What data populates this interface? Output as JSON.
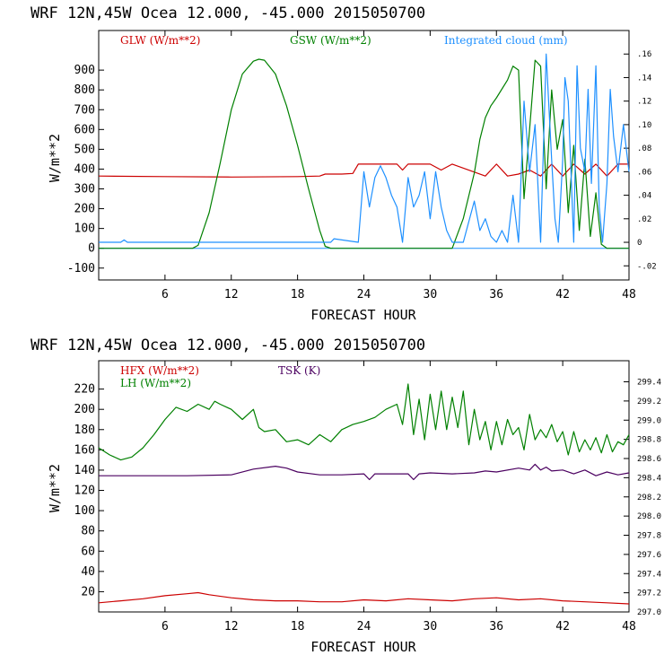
{
  "chart_data": [
    {
      "type": "line",
      "title": "WRF   12N,45W Ocea  12.000, -45.000  2015050700",
      "xlabel": "FORECAST HOUR",
      "ylabel": "W/m**2",
      "xlim": [
        0,
        48
      ],
      "ylim": [
        -160,
        1100
      ],
      "y2lim": [
        -0.032,
        0.18
      ],
      "x_ticks": [
        "6",
        "12",
        "18",
        "24",
        "30",
        "36",
        "42",
        "48"
      ],
      "y_ticks": [
        "-100",
        "0",
        "100",
        "200",
        "300",
        "400",
        "500",
        "600",
        "700",
        "800",
        "900"
      ],
      "y2_ticks": [
        "-.02",
        "0",
        ".02",
        ".04",
        ".06",
        ".08",
        ".10",
        ".12",
        ".14",
        ".16"
      ],
      "legend": [
        {
          "label": "GLW (W/m**2)",
          "color": "#cc0000"
        },
        {
          "label": "GSW (W/m**2)",
          "color": "#008000"
        },
        {
          "label": "Integrated cloud (mm)",
          "color": "#1e90ff"
        }
      ],
      "series": [
        {
          "name": "GLW (W/m**2)",
          "color": "#cc0000",
          "axis": "left",
          "x": [
            0,
            6,
            12,
            18,
            20,
            20.5,
            22,
            23,
            23.5,
            27,
            27.5,
            28,
            30,
            31,
            32,
            35,
            35.5,
            36,
            37,
            38,
            39,
            40,
            41,
            42,
            43,
            44,
            45,
            46,
            47,
            48
          ],
          "values": [
            365,
            362,
            360,
            362,
            365,
            375,
            375,
            378,
            425,
            425,
            395,
            425,
            425,
            395,
            425,
            365,
            395,
            425,
            365,
            375,
            395,
            365,
            425,
            365,
            425,
            375,
            425,
            365,
            425,
            425
          ]
        },
        {
          "name": "GSW (W/m**2)",
          "color": "#008000",
          "axis": "left",
          "x": [
            0,
            8.5,
            9,
            10,
            11,
            12,
            13,
            14,
            14.5,
            15,
            16,
            17,
            18,
            19,
            20,
            20.5,
            21,
            32,
            33,
            34,
            34.5,
            35,
            35.5,
            36,
            37,
            37.5,
            38,
            38.5,
            39,
            39.5,
            40,
            40.5,
            41,
            41.5,
            42,
            42.5,
            43,
            43.5,
            44,
            44.5,
            45,
            45.5,
            46,
            48
          ],
          "values": [
            0,
            0,
            15,
            180,
            430,
            700,
            880,
            945,
            955,
            950,
            880,
            720,
            520,
            300,
            90,
            10,
            0,
            0,
            150,
            380,
            550,
            660,
            720,
            760,
            850,
            920,
            900,
            250,
            600,
            950,
            920,
            300,
            800,
            500,
            650,
            180,
            520,
            90,
            450,
            60,
            280,
            20,
            0,
            0
          ]
        },
        {
          "name": "Integrated cloud (mm)",
          "color": "#1e90ff",
          "axis": "right",
          "x": [
            0,
            2,
            2.3,
            2.6,
            21,
            21.3,
            23.5,
            24,
            24.5,
            25,
            25.5,
            26,
            26.5,
            27,
            27.5,
            28,
            28.5,
            29,
            29.5,
            30,
            30.5,
            31,
            31.5,
            32,
            33,
            34,
            34.5,
            35,
            35.5,
            36,
            36.5,
            37,
            37.5,
            38,
            38.5,
            39,
            39.5,
            40,
            40.5,
            41,
            41.3,
            41.6,
            42,
            42.2,
            42.5,
            43,
            43.3,
            43.6,
            44,
            44.3,
            44.6,
            45,
            45.3,
            45.6,
            46,
            46.3,
            46.6,
            47,
            47.5,
            48
          ],
          "values": [
            0,
            0,
            0.002,
            0,
            0,
            0.003,
            0,
            0.06,
            0.03,
            0.055,
            0.065,
            0.055,
            0.04,
            0.03,
            0,
            0.055,
            0.03,
            0.04,
            0.06,
            0.02,
            0.06,
            0.03,
            0.01,
            0,
            0,
            0.035,
            0.01,
            0.02,
            0.005,
            0,
            0.01,
            0,
            0.04,
            0,
            0.12,
            0.06,
            0.1,
            0,
            0.16,
            0.07,
            0.02,
            0,
            0.07,
            0.14,
            0.12,
            0,
            0.15,
            0.08,
            0.06,
            0.13,
            0.05,
            0.15,
            0.03,
            0,
            0.05,
            0.13,
            0.09,
            0.06,
            0.1,
            0.06
          ]
        }
      ]
    },
    {
      "type": "line",
      "title": "WRF   12N,45W Ocea  12.000, -45.000  2015050700",
      "xlabel": "FORECAST HOUR",
      "ylabel": "W/m**2",
      "xlim": [
        0,
        48
      ],
      "ylim": [
        0,
        248
      ],
      "y2lim": [
        297.0,
        299.62
      ],
      "x_ticks": [
        "6",
        "12",
        "18",
        "24",
        "30",
        "36",
        "42",
        "48"
      ],
      "y_ticks": [
        "20",
        "40",
        "60",
        "80",
        "100",
        "120",
        "140",
        "160",
        "180",
        "200",
        "220"
      ],
      "y2_ticks": [
        "297.0",
        "297.2",
        "297.4",
        "297.6",
        "297.8",
        "298.0",
        "298.2",
        "298.4",
        "298.6",
        "298.8",
        "299.0",
        "299.2",
        "299.4"
      ],
      "legend": [
        {
          "label": "HFX (W/m**2)",
          "color": "#cc0000"
        },
        {
          "label": "LH  (W/m**2)",
          "color": "#008000"
        },
        {
          "label": "TSK (K)",
          "color": "#4b0060"
        }
      ],
      "series": [
        {
          "name": "HFX (W/m**2)",
          "color": "#cc0000",
          "axis": "left",
          "x": [
            0,
            2,
            4,
            6,
            8,
            9,
            10,
            12,
            14,
            16,
            18,
            20,
            22,
            24,
            26,
            28,
            30,
            32,
            34,
            36,
            38,
            40,
            42,
            44,
            46,
            48
          ],
          "values": [
            9,
            11,
            13,
            16,
            18,
            19,
            17,
            14,
            12,
            11,
            11,
            10,
            10,
            12,
            11,
            13,
            12,
            11,
            13,
            14,
            12,
            13,
            11,
            10,
            9,
            8
          ]
        },
        {
          "name": "LH  (W/m**2)",
          "color": "#008000",
          "axis": "left",
          "x": [
            0,
            1,
            2,
            3,
            4,
            5,
            6,
            7,
            8,
            9,
            10,
            10.5,
            11,
            12,
            13,
            14,
            14.5,
            15,
            16,
            17,
            18,
            19,
            20,
            21,
            22,
            23,
            24,
            25,
            26,
            27,
            27.5,
            28,
            28.5,
            29,
            29.5,
            30,
            30.5,
            31,
            31.5,
            32,
            32.5,
            33,
            33.5,
            34,
            34.5,
            35,
            35.5,
            36,
            36.5,
            37,
            37.5,
            38,
            38.5,
            39,
            39.5,
            40,
            40.5,
            41,
            41.5,
            42,
            42.5,
            43,
            43.5,
            44,
            44.5,
            45,
            45.5,
            46,
            46.5,
            47,
            47.5,
            48
          ],
          "values": [
            162,
            155,
            150,
            153,
            162,
            175,
            190,
            202,
            198,
            205,
            200,
            208,
            205,
            200,
            190,
            200,
            182,
            178,
            180,
            168,
            170,
            165,
            175,
            168,
            180,
            185,
            188,
            192,
            200,
            205,
            185,
            225,
            175,
            210,
            170,
            215,
            180,
            218,
            180,
            212,
            182,
            218,
            165,
            200,
            170,
            188,
            160,
            188,
            165,
            190,
            175,
            182,
            160,
            195,
            170,
            180,
            172,
            185,
            168,
            178,
            155,
            178,
            158,
            170,
            160,
            172,
            157,
            175,
            158,
            168,
            165,
            175
          ]
        },
        {
          "name": "TSK (K)",
          "color": "#4b0060",
          "axis": "right",
          "x": [
            0,
            8,
            12,
            14,
            16,
            17,
            18,
            20,
            22,
            24,
            24.5,
            25,
            28,
            28.5,
            29,
            30,
            32,
            34,
            35,
            36,
            38,
            39,
            39.5,
            40,
            40.5,
            41,
            42,
            43,
            44,
            45,
            46,
            47,
            48
          ],
          "values": [
            298.42,
            298.42,
            298.43,
            298.49,
            298.52,
            298.5,
            298.46,
            298.43,
            298.43,
            298.44,
            298.38,
            298.44,
            298.44,
            298.38,
            298.44,
            298.45,
            298.44,
            298.45,
            298.47,
            298.46,
            298.5,
            298.48,
            298.54,
            298.48,
            298.51,
            298.47,
            298.48,
            298.44,
            298.48,
            298.42,
            298.46,
            298.43,
            298.45
          ]
        }
      ]
    }
  ]
}
